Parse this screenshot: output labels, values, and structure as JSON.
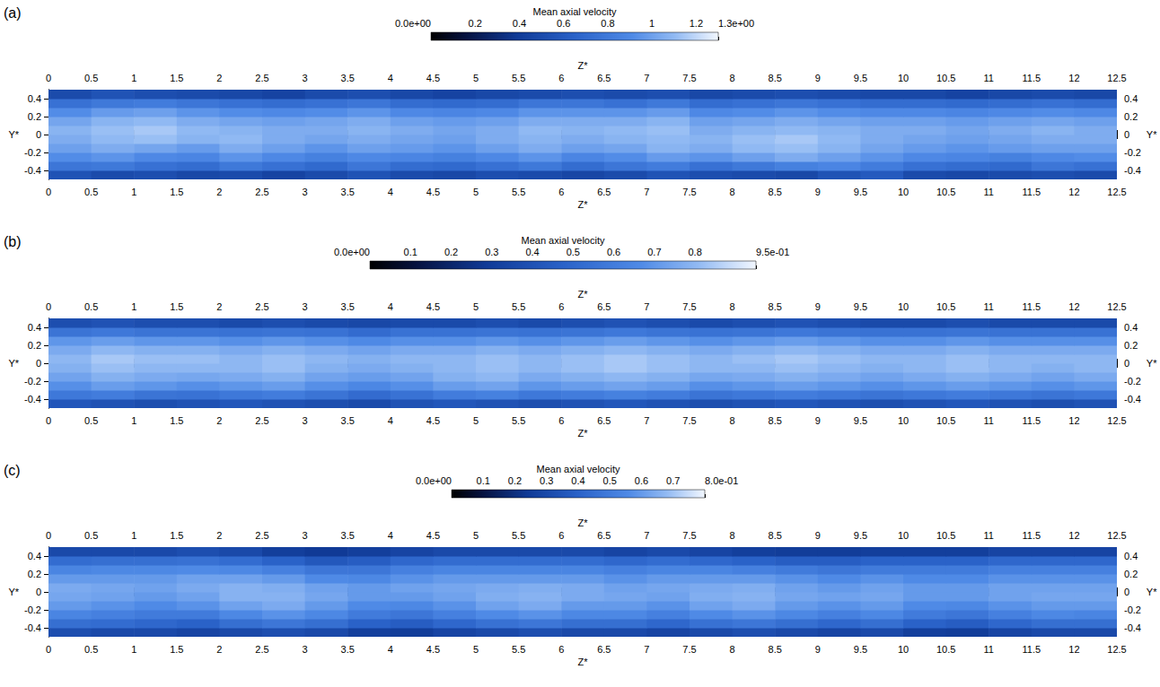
{
  "chart_data": [
    {
      "type": "heatmap",
      "panel": "(a)",
      "x_label": "Z*",
      "y_label": "Y*",
      "grid": false,
      "xlim": [
        0,
        12.5
      ],
      "ylim": [
        -0.5,
        0.5
      ],
      "xticks": [
        0,
        0.5,
        1,
        1.5,
        2,
        2.5,
        3,
        3.5,
        4,
        4.5,
        5,
        5.5,
        6,
        6.5,
        7,
        7.5,
        8,
        8.5,
        9,
        9.5,
        10,
        10.5,
        11,
        11.5,
        12,
        12.5
      ],
      "yticks": [
        -0.4,
        -0.2,
        0,
        0.2,
        0.4
      ],
      "x": [
        0.25,
        0.75,
        1.25,
        1.75,
        2.25,
        2.75,
        3.25,
        3.75,
        4.25,
        4.75,
        5.25,
        5.75,
        6.25,
        6.75,
        7.25,
        7.75,
        8.25,
        8.75,
        9.25,
        9.75,
        10.25,
        10.75,
        11.25,
        11.75,
        12.25
      ],
      "y": [
        -0.45,
        -0.35,
        -0.25,
        -0.15,
        -0.05,
        0.05,
        0.15,
        0.25,
        0.35,
        0.45
      ],
      "cells": [
        [
          0.55,
          0.5,
          0.52,
          0.48,
          0.5,
          0.45,
          0.5,
          0.55,
          0.5,
          0.48,
          0.52,
          0.5,
          0.47,
          0.5,
          0.55,
          0.52,
          0.5,
          0.48,
          0.55,
          0.6,
          0.5,
          0.48,
          0.5,
          0.52,
          0.5
        ],
        [
          0.78,
          0.8,
          0.75,
          0.72,
          0.8,
          0.75,
          0.7,
          0.78,
          0.72,
          0.7,
          0.75,
          0.8,
          0.72,
          0.78,
          0.82,
          0.75,
          0.8,
          0.85,
          0.88,
          0.82,
          0.75,
          0.72,
          0.7,
          0.78,
          0.75
        ],
        [
          0.92,
          0.95,
          0.9,
          0.88,
          0.95,
          0.9,
          0.85,
          0.9,
          0.88,
          0.85,
          0.9,
          0.95,
          0.88,
          0.92,
          0.98,
          0.95,
          1.0,
          1.05,
          1.0,
          0.95,
          0.9,
          0.88,
          0.85,
          0.9,
          0.92
        ],
        [
          1.0,
          1.05,
          1.02,
          0.98,
          1.05,
          1.0,
          0.95,
          1.0,
          0.98,
          0.95,
          1.0,
          1.05,
          1.0,
          1.02,
          1.08,
          1.05,
          1.1,
          1.12,
          1.08,
          1.02,
          0.98,
          0.95,
          0.98,
          1.0,
          1.0
        ],
        [
          1.05,
          1.1,
          1.12,
          1.08,
          1.1,
          1.05,
          1.02,
          1.05,
          1.02,
          1.0,
          1.05,
          1.08,
          1.05,
          1.08,
          1.1,
          1.08,
          1.12,
          1.15,
          1.1,
          1.05,
          1.02,
          1.0,
          1.02,
          1.05,
          1.05
        ],
        [
          1.08,
          1.12,
          1.15,
          1.1,
          1.08,
          1.05,
          1.05,
          1.08,
          1.05,
          1.02,
          1.05,
          1.1,
          1.08,
          1.1,
          1.12,
          1.05,
          1.08,
          1.1,
          1.08,
          1.05,
          1.05,
          1.02,
          1.05,
          1.08,
          1.05
        ],
        [
          1.02,
          1.08,
          1.1,
          1.05,
          1.02,
          1.0,
          1.02,
          1.05,
          1.0,
          0.98,
          1.0,
          1.05,
          1.05,
          1.05,
          1.08,
          1.0,
          1.02,
          1.05,
          1.02,
          1.0,
          1.0,
          0.98,
          1.0,
          1.02,
          1.0
        ],
        [
          0.92,
          0.98,
          1.0,
          0.95,
          0.92,
          0.9,
          0.92,
          0.95,
          0.9,
          0.88,
          0.9,
          0.95,
          0.95,
          0.95,
          0.98,
          0.9,
          0.92,
          0.95,
          0.92,
          0.9,
          0.9,
          0.88,
          0.9,
          0.92,
          0.9
        ],
        [
          0.75,
          0.8,
          0.82,
          0.78,
          0.75,
          0.72,
          0.75,
          0.78,
          0.72,
          0.7,
          0.72,
          0.78,
          0.78,
          0.75,
          0.8,
          0.72,
          0.75,
          0.78,
          0.75,
          0.72,
          0.72,
          0.7,
          0.72,
          0.75,
          0.72
        ],
        [
          0.5,
          0.55,
          0.52,
          0.5,
          0.48,
          0.45,
          0.5,
          0.52,
          0.48,
          0.45,
          0.48,
          0.5,
          0.52,
          0.5,
          0.52,
          0.48,
          0.5,
          0.52,
          0.5,
          0.48,
          0.48,
          0.45,
          0.48,
          0.5,
          0.48
        ]
      ],
      "colorbar": {
        "title": "Mean axial velocity",
        "range": [
          0,
          1.3
        ],
        "ticks": [
          {
            "value": 0,
            "label": "0.0e+00"
          },
          0.2,
          0.4,
          0.6,
          0.8,
          1,
          1.2,
          {
            "value": 1.3,
            "label": "1.3e+00"
          }
        ]
      }
    },
    {
      "type": "heatmap",
      "panel": "(b)",
      "x_label": "Z*",
      "y_label": "Y*",
      "grid": false,
      "xlim": [
        0,
        12.5
      ],
      "ylim": [
        -0.5,
        0.5
      ],
      "xticks": [
        0,
        0.5,
        1,
        1.5,
        2,
        2.5,
        3,
        3.5,
        4,
        4.5,
        5,
        5.5,
        6,
        6.5,
        7,
        7.5,
        8,
        8.5,
        9,
        9.5,
        10,
        10.5,
        11,
        11.5,
        12,
        12.5
      ],
      "yticks": [
        -0.4,
        -0.2,
        0,
        0.2,
        0.4
      ],
      "x": [
        0.25,
        0.75,
        1.25,
        1.75,
        2.25,
        2.75,
        3.25,
        3.75,
        4.25,
        4.75,
        5.25,
        5.75,
        6.25,
        6.75,
        7.25,
        7.75,
        8.25,
        8.75,
        9.25,
        9.75,
        10.25,
        10.75,
        11.25,
        11.75,
        12.25
      ],
      "y": [
        -0.45,
        -0.35,
        -0.25,
        -0.15,
        -0.05,
        0.05,
        0.15,
        0.25,
        0.35,
        0.45
      ],
      "cells": [
        [
          0.42,
          0.4,
          0.38,
          0.4,
          0.42,
          0.4,
          0.38,
          0.36,
          0.4,
          0.42,
          0.4,
          0.38,
          0.4,
          0.42,
          0.4,
          0.38,
          0.4,
          0.42,
          0.4,
          0.38,
          0.4,
          0.42,
          0.4,
          0.38,
          0.4
        ],
        [
          0.58,
          0.6,
          0.56,
          0.55,
          0.58,
          0.6,
          0.56,
          0.52,
          0.55,
          0.6,
          0.62,
          0.58,
          0.6,
          0.62,
          0.6,
          0.56,
          0.58,
          0.6,
          0.58,
          0.56,
          0.58,
          0.6,
          0.58,
          0.56,
          0.58
        ],
        [
          0.68,
          0.72,
          0.7,
          0.68,
          0.7,
          0.72,
          0.68,
          0.65,
          0.68,
          0.72,
          0.74,
          0.7,
          0.72,
          0.74,
          0.72,
          0.68,
          0.7,
          0.72,
          0.7,
          0.68,
          0.7,
          0.72,
          0.7,
          0.68,
          0.7
        ],
        [
          0.74,
          0.78,
          0.76,
          0.75,
          0.76,
          0.78,
          0.74,
          0.72,
          0.74,
          0.78,
          0.8,
          0.76,
          0.78,
          0.8,
          0.78,
          0.75,
          0.76,
          0.78,
          0.76,
          0.74,
          0.76,
          0.78,
          0.76,
          0.74,
          0.76
        ],
        [
          0.78,
          0.82,
          0.8,
          0.8,
          0.8,
          0.82,
          0.78,
          0.76,
          0.78,
          0.8,
          0.82,
          0.8,
          0.82,
          0.84,
          0.82,
          0.8,
          0.8,
          0.82,
          0.8,
          0.78,
          0.8,
          0.82,
          0.8,
          0.78,
          0.8
        ],
        [
          0.8,
          0.84,
          0.82,
          0.82,
          0.8,
          0.82,
          0.8,
          0.78,
          0.8,
          0.8,
          0.82,
          0.8,
          0.82,
          0.84,
          0.82,
          0.8,
          0.82,
          0.84,
          0.82,
          0.8,
          0.8,
          0.82,
          0.8,
          0.8,
          0.8
        ],
        [
          0.76,
          0.8,
          0.78,
          0.78,
          0.76,
          0.78,
          0.76,
          0.74,
          0.76,
          0.76,
          0.78,
          0.76,
          0.78,
          0.8,
          0.78,
          0.76,
          0.78,
          0.8,
          0.78,
          0.76,
          0.76,
          0.78,
          0.76,
          0.76,
          0.76
        ],
        [
          0.7,
          0.72,
          0.7,
          0.7,
          0.68,
          0.7,
          0.68,
          0.66,
          0.68,
          0.68,
          0.7,
          0.68,
          0.7,
          0.72,
          0.7,
          0.68,
          0.7,
          0.72,
          0.7,
          0.68,
          0.68,
          0.7,
          0.68,
          0.68,
          0.68
        ],
        [
          0.56,
          0.58,
          0.56,
          0.56,
          0.55,
          0.56,
          0.55,
          0.52,
          0.55,
          0.55,
          0.56,
          0.55,
          0.56,
          0.58,
          0.56,
          0.55,
          0.56,
          0.58,
          0.56,
          0.55,
          0.55,
          0.56,
          0.55,
          0.55,
          0.55
        ],
        [
          0.38,
          0.4,
          0.38,
          0.38,
          0.36,
          0.38,
          0.36,
          0.35,
          0.36,
          0.36,
          0.38,
          0.36,
          0.38,
          0.4,
          0.38,
          0.36,
          0.38,
          0.4,
          0.38,
          0.36,
          0.36,
          0.38,
          0.36,
          0.36,
          0.36
        ]
      ],
      "colorbar": {
        "title": "Mean axial velocity",
        "range": [
          0,
          0.95
        ],
        "ticks": [
          {
            "value": 0,
            "label": "0.0e+00"
          },
          0.1,
          0.2,
          0.3,
          0.4,
          0.5,
          0.6,
          0.7,
          0.8,
          {
            "value": 0.95,
            "label": "9.5e-01"
          }
        ]
      }
    },
    {
      "type": "heatmap",
      "panel": "(c)",
      "x_label": "Z*",
      "y_label": "Y*",
      "grid": false,
      "xlim": [
        0,
        12.5
      ],
      "ylim": [
        -0.5,
        0.5
      ],
      "xticks": [
        0,
        0.5,
        1,
        1.5,
        2,
        2.5,
        3,
        3.5,
        4,
        4.5,
        5,
        5.5,
        6,
        6.5,
        7,
        7.5,
        8,
        8.5,
        9,
        9.5,
        10,
        10.5,
        11,
        11.5,
        12,
        12.5
      ],
      "yticks": [
        -0.4,
        -0.2,
        0,
        0.2,
        0.4
      ],
      "x": [
        0.25,
        0.75,
        1.25,
        1.75,
        2.25,
        2.75,
        3.25,
        3.75,
        4.25,
        4.75,
        5.25,
        5.75,
        6.25,
        6.75,
        7.25,
        7.75,
        8.25,
        8.75,
        9.25,
        9.75,
        10.25,
        10.75,
        11.25,
        11.75,
        12.25
      ],
      "y": [
        -0.45,
        -0.35,
        -0.25,
        -0.15,
        -0.05,
        0.05,
        0.15,
        0.25,
        0.35,
        0.45
      ],
      "cells": [
        [
          0.32,
          0.3,
          0.3,
          0.28,
          0.3,
          0.32,
          0.3,
          0.26,
          0.25,
          0.28,
          0.3,
          0.32,
          0.3,
          0.3,
          0.28,
          0.3,
          0.32,
          0.3,
          0.28,
          0.3,
          0.26,
          0.25,
          0.28,
          0.3,
          0.3
        ],
        [
          0.45,
          0.44,
          0.42,
          0.4,
          0.45,
          0.48,
          0.45,
          0.4,
          0.38,
          0.42,
          0.46,
          0.48,
          0.45,
          0.45,
          0.42,
          0.46,
          0.48,
          0.45,
          0.42,
          0.45,
          0.4,
          0.38,
          0.42,
          0.45,
          0.45
        ],
        [
          0.54,
          0.52,
          0.5,
          0.5,
          0.55,
          0.58,
          0.55,
          0.5,
          0.48,
          0.52,
          0.56,
          0.58,
          0.55,
          0.55,
          0.52,
          0.56,
          0.58,
          0.55,
          0.52,
          0.55,
          0.5,
          0.48,
          0.52,
          0.55,
          0.54
        ],
        [
          0.6,
          0.58,
          0.56,
          0.58,
          0.62,
          0.64,
          0.6,
          0.56,
          0.55,
          0.58,
          0.62,
          0.64,
          0.6,
          0.6,
          0.58,
          0.62,
          0.64,
          0.6,
          0.58,
          0.6,
          0.56,
          0.55,
          0.58,
          0.6,
          0.6
        ],
        [
          0.63,
          0.62,
          0.6,
          0.62,
          0.66,
          0.66,
          0.63,
          0.6,
          0.6,
          0.62,
          0.65,
          0.66,
          0.64,
          0.63,
          0.62,
          0.65,
          0.66,
          0.63,
          0.62,
          0.63,
          0.6,
          0.6,
          0.62,
          0.63,
          0.63
        ],
        [
          0.64,
          0.63,
          0.62,
          0.64,
          0.66,
          0.65,
          0.62,
          0.6,
          0.62,
          0.63,
          0.64,
          0.65,
          0.64,
          0.62,
          0.63,
          0.64,
          0.65,
          0.62,
          0.6,
          0.62,
          0.6,
          0.6,
          0.62,
          0.62,
          0.62
        ],
        [
          0.6,
          0.6,
          0.6,
          0.62,
          0.62,
          0.6,
          0.56,
          0.55,
          0.58,
          0.6,
          0.6,
          0.6,
          0.6,
          0.58,
          0.6,
          0.6,
          0.6,
          0.58,
          0.56,
          0.58,
          0.56,
          0.56,
          0.58,
          0.58,
          0.58
        ],
        [
          0.54,
          0.55,
          0.55,
          0.56,
          0.55,
          0.52,
          0.48,
          0.48,
          0.52,
          0.54,
          0.54,
          0.54,
          0.54,
          0.52,
          0.54,
          0.54,
          0.52,
          0.5,
          0.48,
          0.5,
          0.5,
          0.5,
          0.52,
          0.52,
          0.52
        ],
        [
          0.44,
          0.45,
          0.45,
          0.46,
          0.44,
          0.4,
          0.36,
          0.38,
          0.42,
          0.44,
          0.44,
          0.44,
          0.44,
          0.42,
          0.44,
          0.42,
          0.4,
          0.38,
          0.38,
          0.4,
          0.4,
          0.4,
          0.42,
          0.42,
          0.42
        ],
        [
          0.3,
          0.3,
          0.3,
          0.32,
          0.3,
          0.26,
          0.24,
          0.26,
          0.28,
          0.3,
          0.3,
          0.3,
          0.3,
          0.28,
          0.3,
          0.28,
          0.26,
          0.25,
          0.25,
          0.26,
          0.26,
          0.26,
          0.28,
          0.28,
          0.28
        ]
      ],
      "colorbar": {
        "title": "Mean axial velocity",
        "range": [
          0,
          0.8
        ],
        "ticks": [
          {
            "value": 0,
            "label": "0.0e+00"
          },
          0.1,
          0.2,
          0.3,
          0.4,
          0.5,
          0.6,
          0.7,
          {
            "value": 0.8,
            "label": "8.0e-01"
          }
        ]
      }
    }
  ]
}
